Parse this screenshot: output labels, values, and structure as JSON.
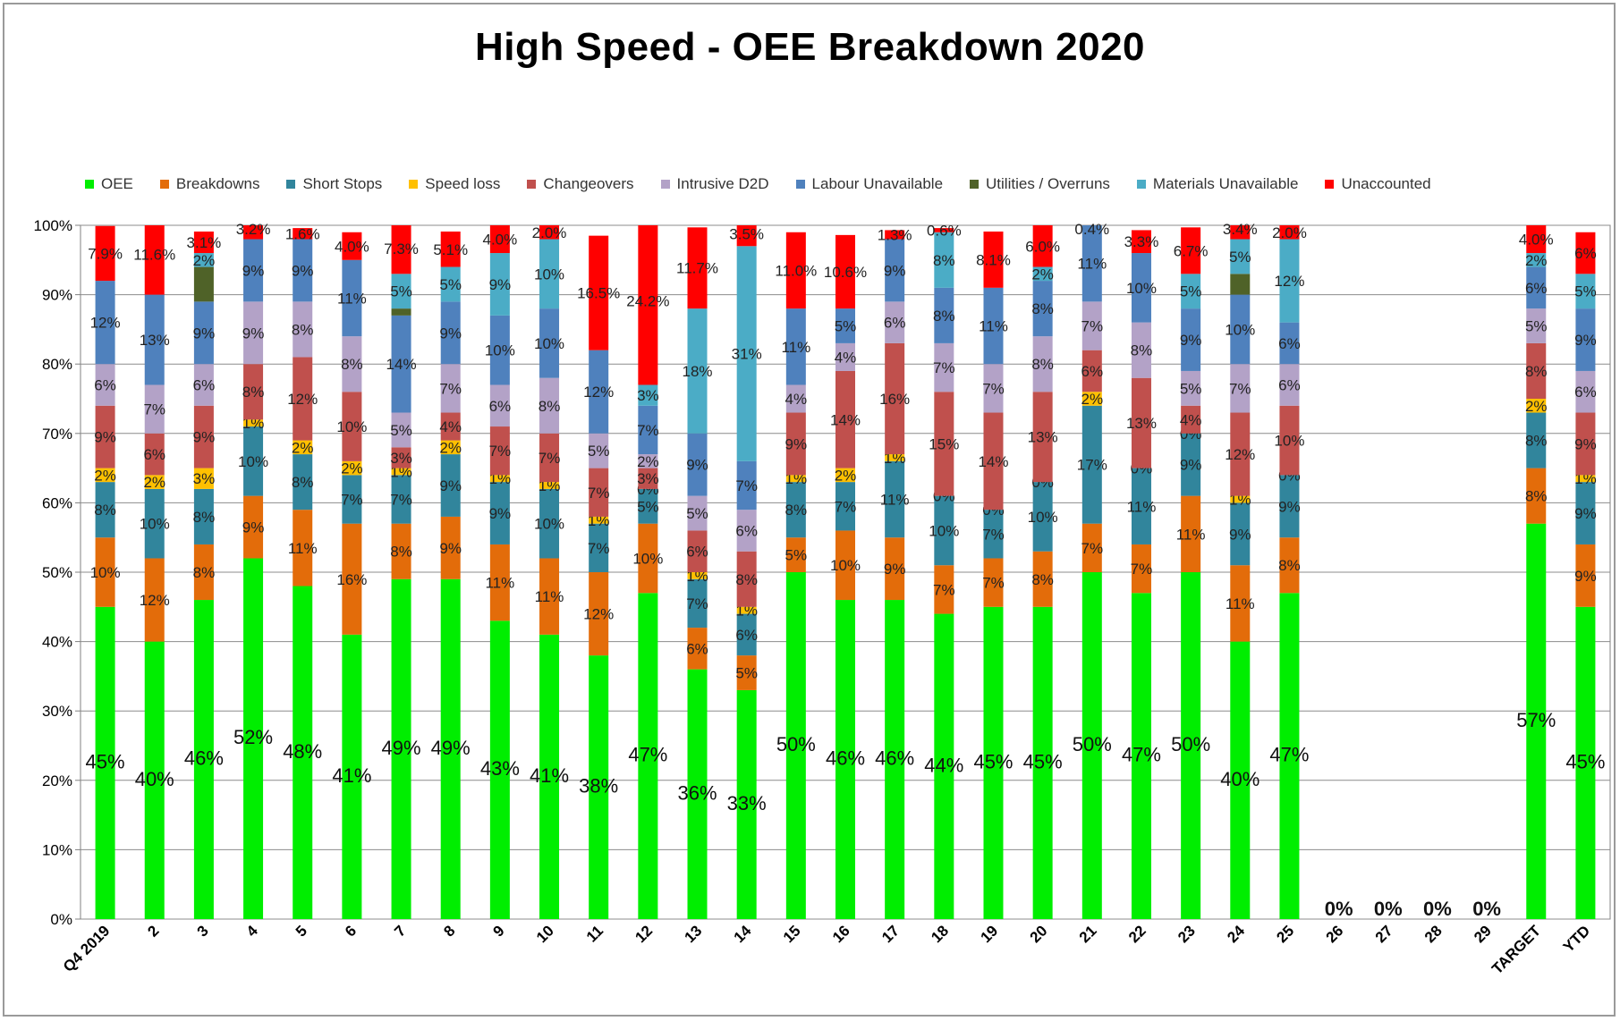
{
  "chart_data": {
    "type": "bar",
    "stacked": true,
    "title": "High Speed - OEE Breakdown 2020",
    "ylim": [
      0,
      100
    ],
    "yticks": [
      "0%",
      "10%",
      "20%",
      "30%",
      "40%",
      "50%",
      "60%",
      "70%",
      "80%",
      "90%",
      "100%"
    ],
    "grid": true,
    "legend_position": "top",
    "categories": [
      "Q4 2019",
      "2",
      "3",
      "4",
      "5",
      "6",
      "7",
      "8",
      "9",
      "10",
      "11",
      "12",
      "13",
      "14",
      "15",
      "16",
      "17",
      "18",
      "19",
      "20",
      "21",
      "22",
      "23",
      "24",
      "25",
      "26",
      "27",
      "28",
      "29",
      "TARGET",
      "YTD"
    ],
    "series": [
      {
        "name": "OEE",
        "color": "#00ee00",
        "values": [
          45,
          40,
          46,
          52,
          48,
          41,
          49,
          49,
          43,
          41,
          38,
          47,
          36,
          33,
          50,
          46,
          46,
          44,
          45,
          45,
          50,
          47,
          50,
          40,
          47,
          0,
          0,
          0,
          0,
          57,
          45
        ]
      },
      {
        "name": "Breakdowns",
        "color": "#e36c0a",
        "values": [
          10,
          12,
          8,
          9,
          11,
          16,
          8,
          9,
          11,
          11,
          12,
          10,
          6,
          5,
          5,
          10,
          9,
          7,
          7,
          8,
          7,
          7,
          11,
          11,
          8,
          0,
          0,
          0,
          0,
          8,
          9
        ]
      },
      {
        "name": "Short Stops",
        "color": "#31859c",
        "values": [
          8,
          10,
          8,
          10,
          8,
          7,
          7,
          9,
          9,
          10,
          7,
          5,
          7,
          6,
          8,
          7,
          11,
          10,
          7,
          10,
          17,
          11,
          9,
          9,
          9,
          0,
          0,
          0,
          0,
          8,
          9
        ]
      },
      {
        "name": "Speed loss",
        "color": "#ffc000",
        "values": [
          2,
          2,
          3,
          1,
          2,
          2,
          1,
          2,
          1,
          1,
          1,
          0,
          1,
          1,
          1,
          2,
          1,
          0,
          0,
          0,
          2,
          0,
          0,
          1,
          0,
          0,
          0,
          0,
          0,
          2,
          1
        ]
      },
      {
        "name": "Changeovers",
        "color": "#c0504d",
        "values": [
          9,
          6,
          9,
          8,
          12,
          10,
          3,
          4,
          7,
          7,
          7,
          3,
          6,
          8,
          9,
          14,
          16,
          15,
          14,
          13,
          6,
          13,
          4,
          12,
          10,
          0,
          0,
          0,
          0,
          8,
          9
        ]
      },
      {
        "name": "Intrusive D2D",
        "color": "#b3a2c7",
        "values": [
          6,
          7,
          6,
          9,
          8,
          8,
          5,
          7,
          6,
          8,
          5,
          2,
          5,
          6,
          4,
          4,
          6,
          7,
          7,
          8,
          7,
          8,
          5,
          7,
          6,
          0,
          0,
          0,
          0,
          5,
          6
        ]
      },
      {
        "name": "Labour Unavailable",
        "color": "#4f81bd",
        "values": [
          12,
          13,
          9,
          9,
          9,
          11,
          14,
          9,
          10,
          10,
          12,
          7,
          9,
          7,
          11,
          5,
          9,
          8,
          11,
          8,
          11,
          10,
          9,
          10,
          6,
          0,
          0,
          0,
          0,
          6,
          9
        ]
      },
      {
        "name": "Utilities / Overruns",
        "color": "#4f6228",
        "values": [
          0,
          0,
          5,
          0,
          0,
          0,
          1,
          0,
          0,
          0,
          0,
          0,
          0,
          0,
          0,
          0,
          0,
          0,
          0,
          0,
          0,
          0,
          0,
          3,
          0,
          0,
          0,
          0,
          0,
          0,
          0
        ]
      },
      {
        "name": "Materials Unavailable",
        "color": "#4bacc6",
        "values": [
          0,
          0,
          2,
          0,
          0,
          0,
          5,
          5,
          9,
          10,
          0,
          3,
          18,
          31,
          0,
          0,
          0,
          8,
          0,
          2,
          0,
          0,
          5,
          5,
          12,
          0,
          0,
          0,
          0,
          2,
          5
        ]
      },
      {
        "name": "Unaccounted",
        "color": "#ff0000",
        "values": [
          7.9,
          11.6,
          3.1,
          3.2,
          1.6,
          4.0,
          7.3,
          5.1,
          4.0,
          2.0,
          16.5,
          24.2,
          11.7,
          3.5,
          11.0,
          10.6,
          1.3,
          0.6,
          8.1,
          6.0,
          0.4,
          3.3,
          6.7,
          3.4,
          2.0,
          0,
          0,
          0,
          0,
          4.0,
          6
        ]
      }
    ],
    "labels": [
      [
        "45%",
        "10%",
        "8%",
        "2%",
        "9%",
        "6%",
        "12%",
        "",
        "",
        "7.9%"
      ],
      [
        "40%",
        "12%",
        "10%",
        "2%",
        "6%",
        "7%",
        "13%",
        "",
        "",
        "11.6%"
      ],
      [
        "46%",
        "8%",
        "8%",
        "3%",
        "9%",
        "6%",
        "9%",
        "",
        "2%",
        "3.1%"
      ],
      [
        "52%",
        "9%",
        "10%",
        "1%",
        "8%",
        "9%",
        "9%",
        "",
        "",
        "3.2%"
      ],
      [
        "48%",
        "11%",
        "8%",
        "2%",
        "12%",
        "8%",
        "9%",
        "",
        "",
        "1.6%"
      ],
      [
        "41%",
        "16%",
        "7%",
        "2%",
        "10%",
        "8%",
        "11%",
        "",
        "",
        "4.0%"
      ],
      [
        "49%",
        "8%",
        "7%",
        "1%",
        "3%",
        "5%",
        "14%",
        "",
        "5%",
        "7.3%"
      ],
      [
        "49%",
        "9%",
        "9%",
        "2%",
        "4%",
        "7%",
        "9%",
        "",
        "5%",
        "5.1%"
      ],
      [
        "43%",
        "11%",
        "9%",
        "1%",
        "7%",
        "6%",
        "10%",
        "",
        "9%",
        "4.0%"
      ],
      [
        "41%",
        "11%",
        "10%",
        "1%",
        "7%",
        "8%",
        "10%",
        "",
        "10%",
        "2.0%"
      ],
      [
        "38%",
        "12%",
        "7%",
        "1%",
        "7%",
        "5%",
        "12%",
        "",
        "",
        "16.5%"
      ],
      [
        "47%",
        "10%",
        "5%",
        "0%",
        "3%",
        "2%",
        "7%",
        "",
        "3%",
        "24.2%"
      ],
      [
        "36%",
        "6%",
        "7%",
        "1%",
        "6%",
        "5%",
        "9%",
        "",
        "18%",
        "11.7%"
      ],
      [
        "33%",
        "5%",
        "6%",
        "1%",
        "8%",
        "6%",
        "7%",
        "",
        "31%",
        "3.5%"
      ],
      [
        "50%",
        "5%",
        "8%",
        "1%",
        "9%",
        "4%",
        "11%",
        "",
        "",
        "11.0%"
      ],
      [
        "46%",
        "10%",
        "7%",
        "2%",
        "14%",
        "4%",
        "5%",
        "",
        "",
        "10.6%"
      ],
      [
        "46%",
        "9%",
        "11%",
        "1%",
        "16%",
        "6%",
        "9%",
        "",
        "",
        "1.3%"
      ],
      [
        "44%",
        "7%",
        "10%",
        "0%",
        "15%",
        "7%",
        "8%",
        "",
        "8%",
        "0.6%"
      ],
      [
        "45%",
        "7%",
        "7%",
        "0%",
        "14%",
        "7%",
        "11%",
        "",
        "",
        "8.1%"
      ],
      [
        "45%",
        "8%",
        "10%",
        "0%",
        "13%",
        "8%",
        "8%",
        "",
        "2%",
        "6.0%"
      ],
      [
        "50%",
        "7%",
        "17%",
        "2%",
        "6%",
        "7%",
        "11%",
        "",
        "",
        "0.4%"
      ],
      [
        "47%",
        "7%",
        "11%",
        "0%",
        "13%",
        "8%",
        "10%",
        "",
        "",
        "3.3%"
      ],
      [
        "50%",
        "11%",
        "9%",
        "0%",
        "4%",
        "5%",
        "9%",
        "",
        "5%",
        "6.7%"
      ],
      [
        "40%",
        "11%",
        "9%",
        "1%",
        "12%",
        "7%",
        "10%",
        "",
        "5%",
        "3.4%"
      ],
      [
        "47%",
        "8%",
        "9%",
        "0%",
        "10%",
        "6%",
        "6%",
        "",
        "12%",
        "2.0%"
      ],
      [
        "0%",
        "",
        "",
        "",
        "",
        "",
        "",
        "",
        "",
        ""
      ],
      [
        "0%",
        "",
        "",
        "",
        "",
        "",
        "",
        "",
        "",
        ""
      ],
      [
        "0%",
        "",
        "",
        "",
        "",
        "",
        "",
        "",
        "",
        ""
      ],
      [
        "0%",
        "",
        "",
        "",
        "",
        "",
        "",
        "",
        "",
        ""
      ],
      [
        "57%",
        "8%",
        "8%",
        "2%",
        "8%",
        "5%",
        "6%",
        "",
        "2%",
        "4.0%"
      ],
      [
        "45%",
        "9%",
        "9%",
        "1%",
        "9%",
        "6%",
        "9%",
        "",
        "5%",
        "6%"
      ]
    ]
  }
}
